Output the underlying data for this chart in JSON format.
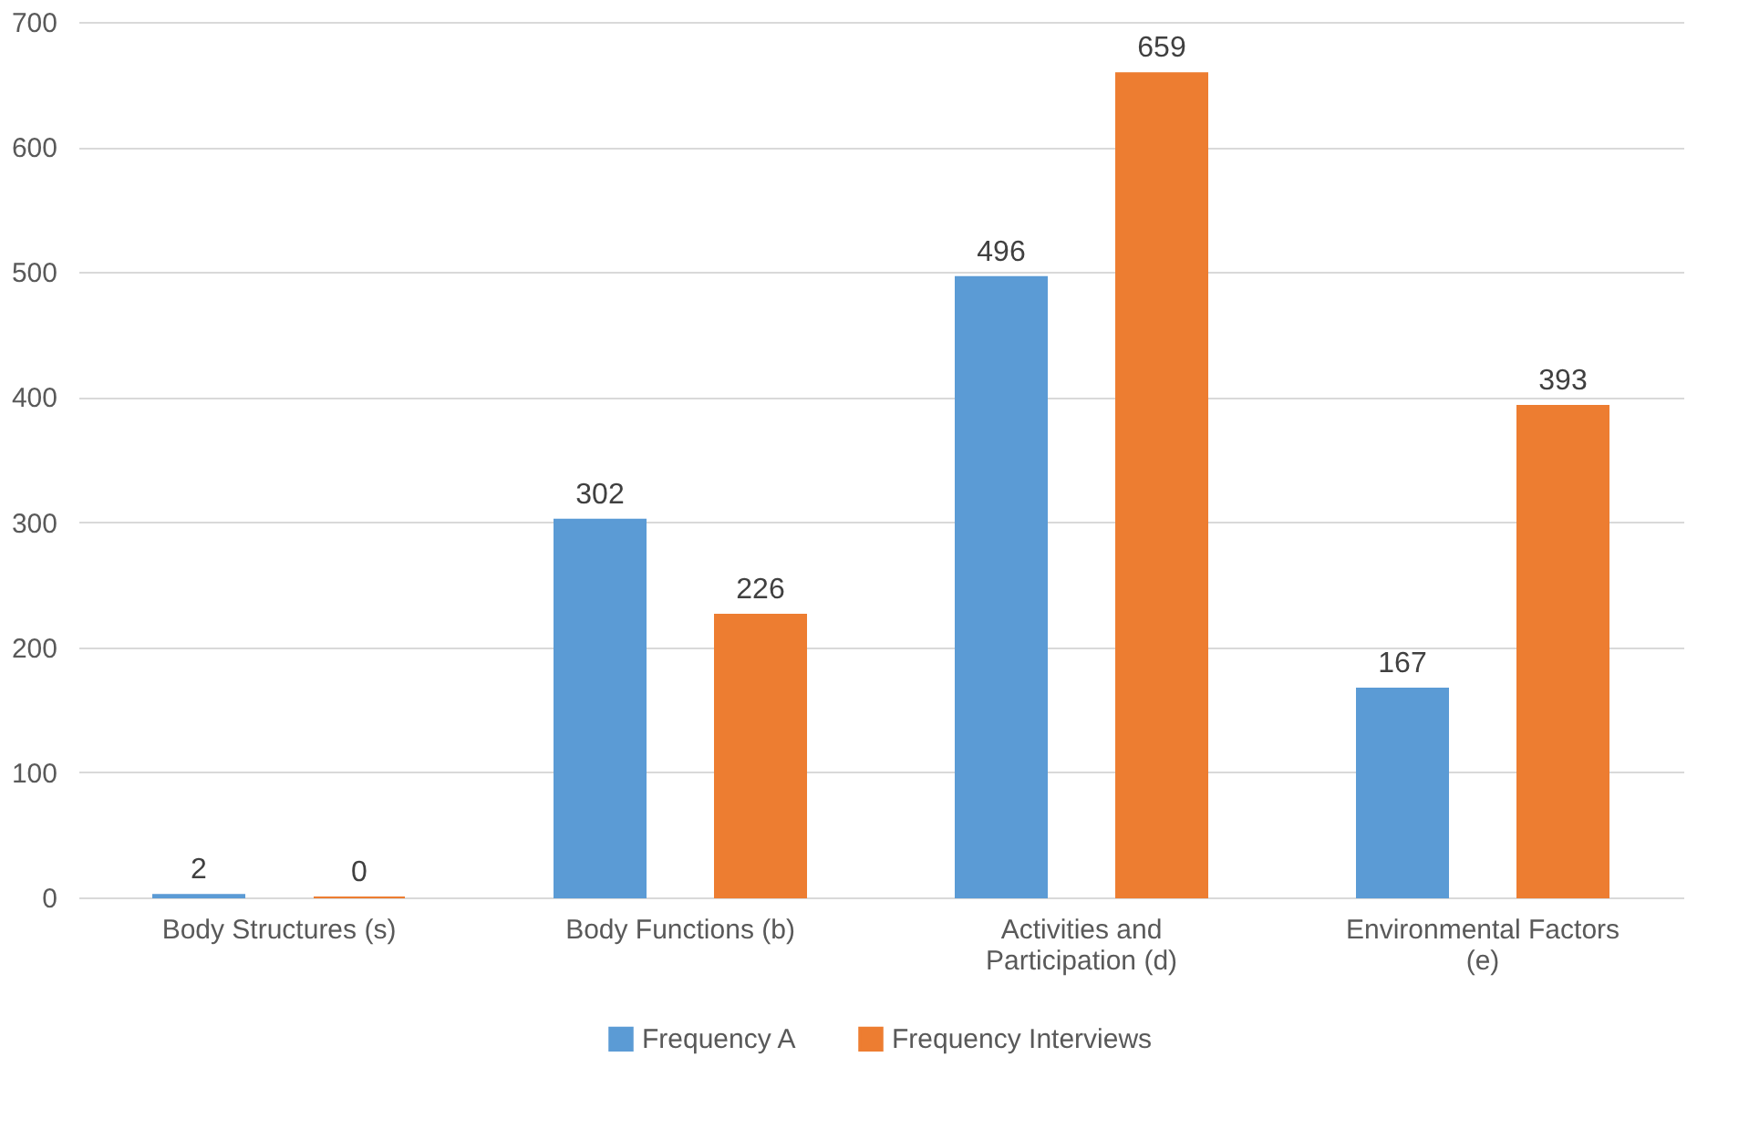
{
  "chart_data": {
    "type": "bar",
    "categories": [
      "Body Structures (s)",
      "Body Functions (b)",
      "Activities and Participation (d)",
      "Environmental Factors (e)"
    ],
    "series": [
      {
        "name": "Frequency A",
        "color": "#5b9bd5",
        "values": [
          2,
          302,
          496,
          167
        ]
      },
      {
        "name": "Frequency Interviews",
        "color": "#ed7d31",
        "values": [
          0,
          226,
          659,
          393
        ]
      }
    ],
    "ylim": [
      0,
      700
    ],
    "yticks": [
      0,
      100,
      200,
      300,
      400,
      500,
      600,
      700
    ],
    "grid": "y",
    "legend": "bottom",
    "data_labels": true
  }
}
